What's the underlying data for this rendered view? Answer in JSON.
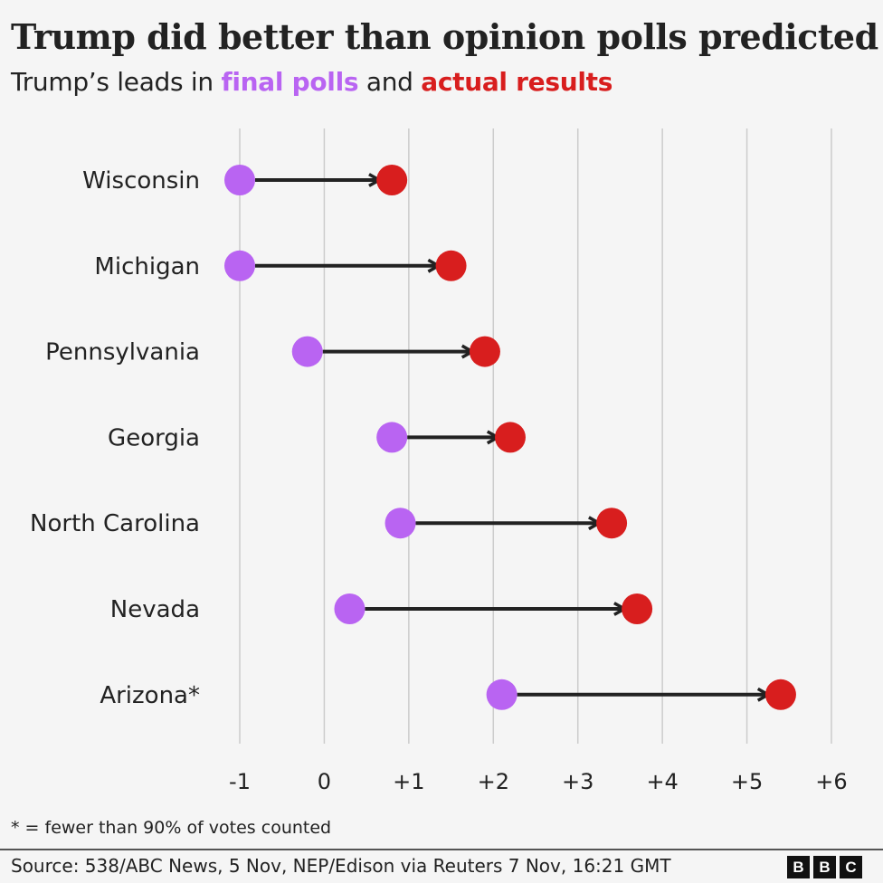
{
  "title": "Trump did better than opinion polls predicted",
  "subtitle": {
    "prefix": "Trump’s leads in ",
    "polls": "final polls",
    "middle": " and ",
    "results": "actual results"
  },
  "colors": {
    "polls": "#b964f2",
    "results": "#d81e1e",
    "arrow": "#222222",
    "grid": "#cccccc"
  },
  "chart_data": {
    "type": "dumbbell",
    "title": "Trump did better than opinion polls predicted",
    "categories": [
      "Wisconsin",
      "Michigan",
      "Pennsylvania",
      "Georgia",
      "North Carolina",
      "Nevada",
      "Arizona*"
    ],
    "series": [
      {
        "name": "final polls",
        "values": [
          -1.0,
          -1.0,
          -0.2,
          0.8,
          0.9,
          0.3,
          2.1
        ]
      },
      {
        "name": "actual results",
        "values": [
          0.8,
          1.5,
          1.9,
          2.2,
          3.4,
          3.7,
          5.4
        ]
      }
    ],
    "xlim": [
      -1,
      6
    ],
    "xticks": [
      -1,
      0,
      1,
      2,
      3,
      4,
      5,
      6
    ],
    "xtick_labels": [
      "-1",
      "0",
      "+1",
      "+2",
      "+3",
      "+4",
      "+5",
      "+6"
    ],
    "grid": true
  },
  "footnote": "* = fewer than 90% of votes counted",
  "source": "Source: 538/ABC News, 5 Nov, NEP/Edison via Reuters 7 Nov, 16:21 GMT",
  "logo": [
    "B",
    "B",
    "C"
  ]
}
